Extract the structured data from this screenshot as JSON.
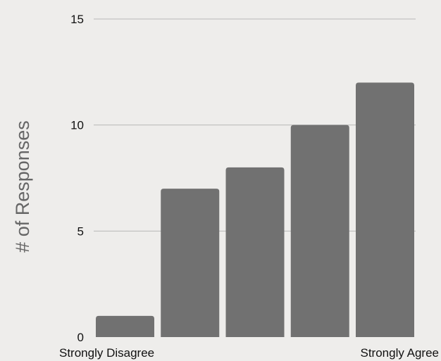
{
  "chart_data": {
    "type": "bar",
    "title": "",
    "xlabel": "",
    "ylabel": "# of Responses",
    "categories": [
      "Strongly Disagree",
      "",
      "",
      "",
      "Strongly Agree"
    ],
    "values": [
      1,
      7,
      8,
      10,
      12
    ],
    "ylim": [
      0,
      15
    ],
    "yticks": [
      0,
      5,
      10,
      15
    ],
    "grid": true,
    "legend": "none",
    "colors": {
      "bar": "#717171",
      "grid": "#b8b8b8",
      "background": "#eeedeb"
    }
  }
}
